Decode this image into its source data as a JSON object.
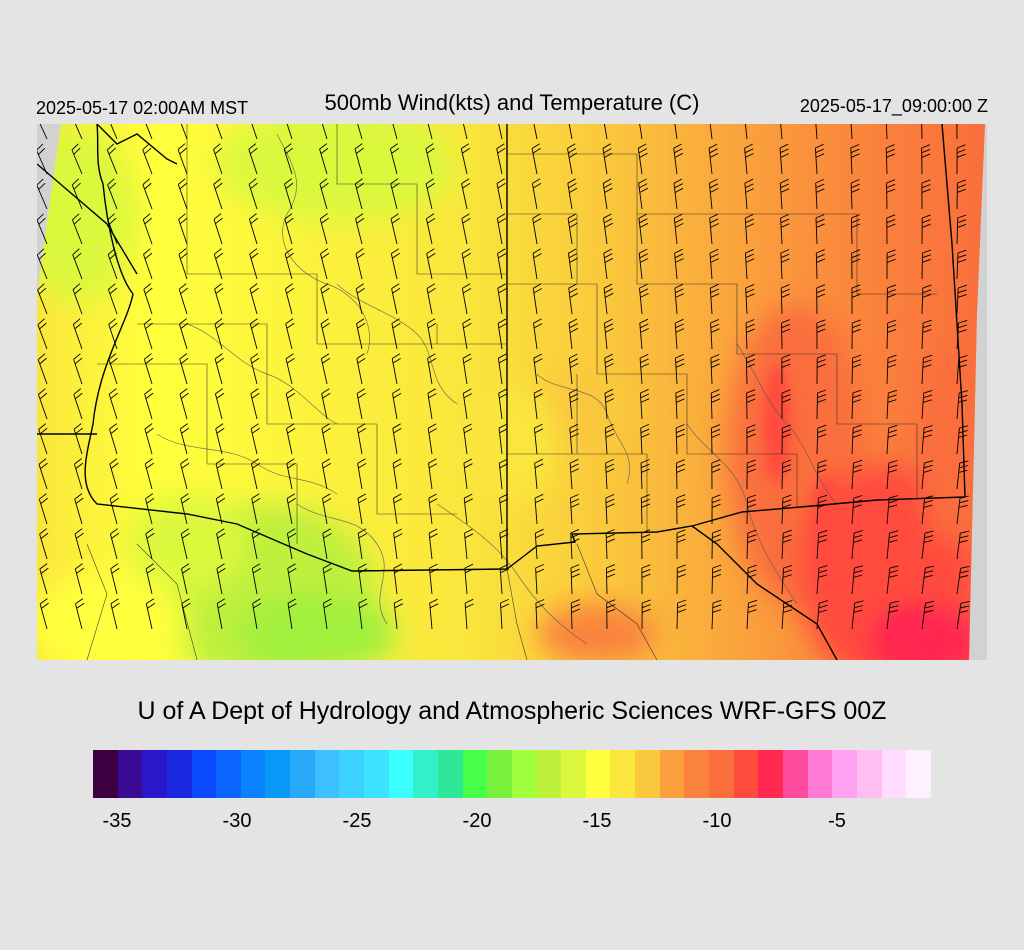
{
  "header": {
    "valid_time_local": "2025-05-17 02:00AM MST",
    "title": "500mb Wind(kts) and Temperature (C)",
    "valid_time_utc": "2025-05-17_09:00:00 Z"
  },
  "credit": "U of A Dept of Hydrology and Atmospheric Sciences WRF-GFS 00Z",
  "map": {
    "field": "500mb temperature",
    "overlay": "wind barbs",
    "background_color": "#d2d2d2",
    "line_color": "#000000"
  },
  "colorbar": {
    "colors": [
      "#3d0040",
      "#3a0a94",
      "#2818c8",
      "#1a28e0",
      "#0a4aff",
      "#0a66ff",
      "#0a82ff",
      "#0a98f8",
      "#28aaf8",
      "#3cc0ff",
      "#3cd2ff",
      "#3ce2ff",
      "#3cffff",
      "#32f0c8",
      "#2ee898",
      "#46ff46",
      "#78f03c",
      "#a0ff3c",
      "#bef03c",
      "#dcf83c",
      "#ffff3c",
      "#fae63c",
      "#fac83c",
      "#faa03c",
      "#fa823c",
      "#fa6e3c",
      "#ff4b3c",
      "#ff2850",
      "#ff4b9e",
      "#ff7ad2",
      "#ffa0f0",
      "#ffbef0",
      "#ffdcff",
      "#fff0ff"
    ],
    "tick_labels": [
      "-35",
      "-30",
      "-25",
      "-20",
      "-15",
      "-10",
      "-5"
    ]
  }
}
